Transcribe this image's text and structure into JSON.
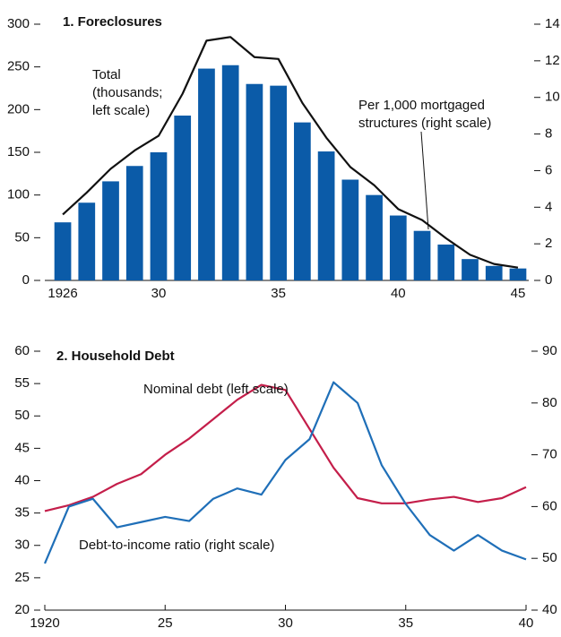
{
  "chart_data": [
    {
      "type": "combo",
      "title": "1. Foreclosures",
      "x": [
        1926,
        1927,
        1928,
        1929,
        1930,
        1931,
        1932,
        1933,
        1934,
        1935,
        1936,
        1937,
        1938,
        1939,
        1940,
        1941,
        1942,
        1943,
        1944,
        1945
      ],
      "xlim": [
        1925.25,
        1945.45
      ],
      "xticks": [
        1926,
        {
          "value": 1930,
          "label": "30"
        },
        {
          "value": 1935,
          "label": "35"
        },
        {
          "value": 1940,
          "label": "40"
        },
        {
          "value": 1945,
          "label": "45"
        }
      ],
      "ylim": [
        0,
        300
      ],
      "yticks": [
        0,
        50,
        100,
        150,
        200,
        250,
        300
      ],
      "y2lim": [
        0,
        14
      ],
      "y2ticks": [
        0,
        2,
        4,
        6,
        8,
        10,
        12,
        14
      ],
      "series": [
        {
          "kind": "bar",
          "color": "#0b5ba8",
          "values": [
            68,
            91,
            116,
            134,
            150,
            193,
            248,
            252,
            230,
            228,
            185,
            151,
            118,
            100,
            76,
            58,
            42,
            25,
            17,
            14
          ]
        },
        {
          "kind": "line",
          "axis": "y2",
          "color": "#111111",
          "values": [
            3.6,
            4.8,
            6.1,
            7.1,
            7.9,
            10.2,
            13.1,
            13.3,
            12.2,
            12.1,
            9.7,
            7.8,
            6.2,
            5.2,
            3.9,
            3.3,
            2.3,
            1.4,
            0.9,
            0.7
          ]
        }
      ],
      "annotations": [
        [
          "Total",
          "(thousands;",
          "left scale)"
        ],
        [
          "Per 1,000 mortgaged",
          "structures (right scale)"
        ]
      ]
    },
    {
      "type": "line",
      "title": "2. Household Debt",
      "x": [
        1920,
        1921,
        1922,
        1923,
        1924,
        1925,
        1926,
        1927,
        1928,
        1929,
        1930,
        1931,
        1932,
        1933,
        1934,
        1935,
        1936,
        1937,
        1938,
        1939,
        1940
      ],
      "xlim": [
        1920,
        1940
      ],
      "xticks": [
        1920,
        {
          "value": 1925,
          "label": "25"
        },
        {
          "value": 1930,
          "label": "30"
        },
        {
          "value": 1935,
          "label": "35"
        },
        {
          "value": 1940,
          "label": "40"
        }
      ],
      "ylim": [
        20,
        60
      ],
      "yticks": [
        20,
        25,
        30,
        35,
        40,
        45,
        50,
        55,
        60
      ],
      "y2lim": [
        40,
        90
      ],
      "y2ticks": [
        40,
        50,
        60,
        70,
        80,
        90
      ],
      "series": [
        {
          "name": "Nominal debt (left scale)",
          "color": "#c41e4a",
          "values": [
            35.3,
            36.2,
            37.5,
            39.5,
            41,
            44,
            46.5,
            49.5,
            52.5,
            54.8,
            54,
            48,
            42,
            37.3,
            36.5,
            36.5,
            37.1,
            37.5,
            36.7,
            37.3,
            39
          ]
        },
        {
          "name": "Debt-to-income ratio (right scale)",
          "axis": "y2",
          "color": "#1f6fb8",
          "values": [
            49,
            60,
            61.5,
            56,
            57,
            58,
            57.2,
            61.5,
            63.5,
            62.3,
            69,
            73,
            84,
            80,
            68,
            60.5,
            54.5,
            51.5,
            54.5,
            51.5,
            49.8
          ]
        }
      ]
    }
  ]
}
